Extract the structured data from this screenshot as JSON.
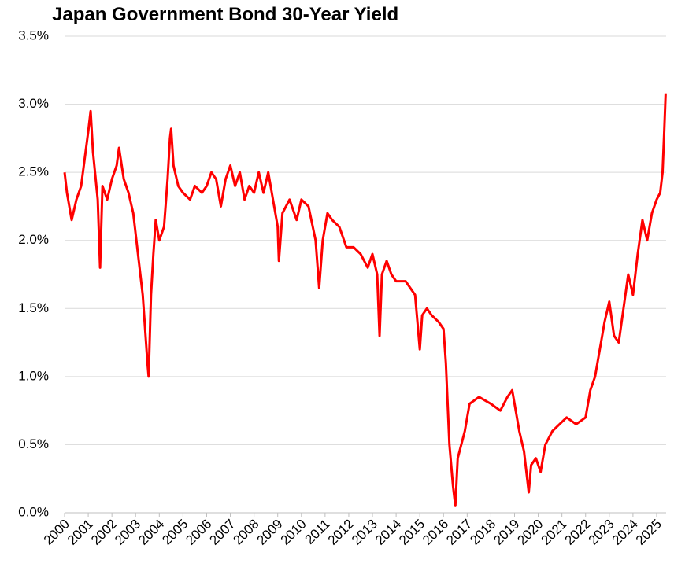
{
  "chart_data": {
    "type": "line",
    "title": "Japan Government Bond 30-Year Yield",
    "color": "#ff0000",
    "grid": true,
    "xlim": [
      2000,
      2025.4
    ],
    "xticks": [
      2000,
      2001,
      2002,
      2003,
      2004,
      2005,
      2006,
      2007,
      2008,
      2009,
      2010,
      2011,
      2012,
      2013,
      2014,
      2015,
      2016,
      2017,
      2018,
      2019,
      2020,
      2021,
      2022,
      2023,
      2024,
      2025
    ],
    "ylim": [
      0,
      3.5
    ],
    "yticks": [
      {
        "value": 0,
        "label": "0.0%"
      },
      {
        "value": 0.5,
        "label": "0.5%"
      },
      {
        "value": 1,
        "label": "1.0%"
      },
      {
        "value": 1.5,
        "label": "1.5%"
      },
      {
        "value": 2,
        "label": "2.0%"
      },
      {
        "value": 2.5,
        "label": "2.5%"
      },
      {
        "value": 3,
        "label": "3.0%"
      },
      {
        "value": 3.5,
        "label": "3.5%"
      }
    ],
    "x": [
      2000.0,
      2000.1,
      2000.3,
      2000.5,
      2000.7,
      2000.85,
      2001.0,
      2001.1,
      2001.2,
      2001.4,
      2001.5,
      2001.6,
      2001.8,
      2002.0,
      2002.2,
      2002.3,
      2002.5,
      2002.7,
      2002.9,
      2003.1,
      2003.3,
      2003.4,
      2003.5,
      2003.55,
      2003.65,
      2003.75,
      2003.85,
      2004.0,
      2004.2,
      2004.35,
      2004.45,
      2004.5,
      2004.6,
      2004.8,
      2005.0,
      2005.3,
      2005.5,
      2005.8,
      2006.0,
      2006.2,
      2006.4,
      2006.6,
      2006.8,
      2007.0,
      2007.2,
      2007.4,
      2007.6,
      2007.8,
      2008.0,
      2008.2,
      2008.4,
      2008.6,
      2008.8,
      2009.0,
      2009.05,
      2009.2,
      2009.5,
      2009.8,
      2010.0,
      2010.3,
      2010.6,
      2010.75,
      2010.9,
      2011.1,
      2011.3,
      2011.6,
      2011.9,
      2012.2,
      2012.5,
      2012.8,
      2013.0,
      2013.2,
      2013.3,
      2013.4,
      2013.6,
      2013.8,
      2014.0,
      2014.4,
      2014.8,
      2015.0,
      2015.1,
      2015.3,
      2015.5,
      2015.8,
      2016.0,
      2016.1,
      2016.25,
      2016.4,
      2016.5,
      2016.6,
      2016.9,
      2017.1,
      2017.5,
      2018.0,
      2018.4,
      2018.7,
      2018.9,
      2019.2,
      2019.4,
      2019.6,
      2019.7,
      2019.9,
      2020.1,
      2020.3,
      2020.6,
      2020.9,
      2021.2,
      2021.6,
      2022.0,
      2022.2,
      2022.4,
      2022.6,
      2022.8,
      2023.0,
      2023.2,
      2023.4,
      2023.6,
      2023.8,
      2024.0,
      2024.2,
      2024.4,
      2024.6,
      2024.8,
      2025.0,
      2025.15,
      2025.25,
      2025.32,
      2025.38
    ],
    "values": [
      2.5,
      2.35,
      2.15,
      2.3,
      2.4,
      2.6,
      2.8,
      2.95,
      2.65,
      2.3,
      1.8,
      2.4,
      2.3,
      2.45,
      2.55,
      2.68,
      2.45,
      2.35,
      2.2,
      1.9,
      1.6,
      1.35,
      1.1,
      1.0,
      1.6,
      1.9,
      2.15,
      2.0,
      2.1,
      2.45,
      2.75,
      2.82,
      2.55,
      2.4,
      2.35,
      2.3,
      2.4,
      2.35,
      2.4,
      2.5,
      2.45,
      2.25,
      2.45,
      2.55,
      2.4,
      2.5,
      2.3,
      2.4,
      2.35,
      2.5,
      2.35,
      2.5,
      2.3,
      2.1,
      1.85,
      2.2,
      2.3,
      2.15,
      2.3,
      2.25,
      2.0,
      1.65,
      2.0,
      2.2,
      2.15,
      2.1,
      1.95,
      1.95,
      1.9,
      1.8,
      1.9,
      1.75,
      1.3,
      1.75,
      1.85,
      1.75,
      1.7,
      1.7,
      1.6,
      1.2,
      1.45,
      1.5,
      1.45,
      1.4,
      1.35,
      1.1,
      0.5,
      0.2,
      0.05,
      0.4,
      0.6,
      0.8,
      0.85,
      0.8,
      0.75,
      0.85,
      0.9,
      0.6,
      0.45,
      0.15,
      0.35,
      0.4,
      0.3,
      0.5,
      0.6,
      0.65,
      0.7,
      0.65,
      0.7,
      0.9,
      1.0,
      1.2,
      1.4,
      1.55,
      1.3,
      1.25,
      1.5,
      1.75,
      1.6,
      1.9,
      2.15,
      2.0,
      2.2,
      2.3,
      2.35,
      2.5,
      2.8,
      3.08
    ]
  }
}
